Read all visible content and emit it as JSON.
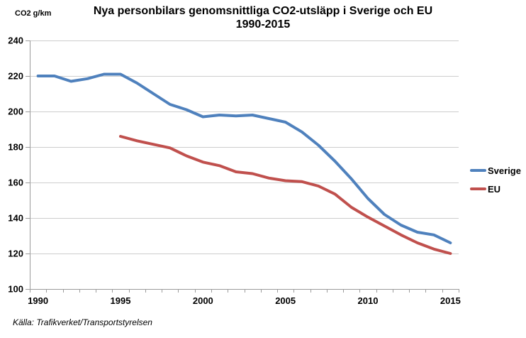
{
  "header": {
    "title_line1": "Nya personbilars genomsnittliga CO2-utsläpp i Sverige och EU",
    "title_line2": "1990-2015"
  },
  "chart_data": {
    "type": "line",
    "title": "Nya personbilars genomsnittliga CO2-utsläpp i Sverige och EU 1990-2015",
    "ylabel": "CO2 g/km",
    "xlabel": "",
    "x": [
      1990,
      1991,
      1992,
      1993,
      1994,
      1995,
      1996,
      1997,
      1998,
      1999,
      2000,
      2001,
      2002,
      2003,
      2004,
      2005,
      2006,
      2007,
      2008,
      2009,
      2010,
      2011,
      2012,
      2013,
      2014,
      2015
    ],
    "series": [
      {
        "name": "Sverige",
        "color": "#4F81BD",
        "values": [
          220,
          220,
          217,
          218.5,
          221,
          221,
          216,
          210,
          204,
          201,
          197,
          198,
          197.5,
          198,
          196,
          194,
          188.5,
          181,
          172,
          162,
          151,
          142,
          136,
          132,
          130.5,
          126
        ]
      },
      {
        "name": "EU",
        "color": "#C0504D",
        "values": [
          null,
          null,
          null,
          null,
          null,
          186,
          183.5,
          181.5,
          179.5,
          175,
          171.5,
          169.5,
          166,
          165,
          162.5,
          161,
          160.5,
          158,
          153.5,
          146,
          140.5,
          135.5,
          130.5,
          126,
          122.5,
          120
        ]
      }
    ],
    "ylim": [
      100,
      240
    ],
    "y_ticks": [
      240,
      220,
      200,
      180,
      160,
      140,
      120,
      100
    ],
    "x_tick_years": [
      1990,
      1995,
      2000,
      2005,
      2010,
      2015
    ],
    "grid": "horizontal-only",
    "legend_position": "right",
    "colors": {
      "grid": "#CDCDCD",
      "axis": "#9B9B9B",
      "text": "#000000"
    }
  },
  "footer": {
    "source": "Källa: Trafikverket/Transportstyrelsen"
  }
}
